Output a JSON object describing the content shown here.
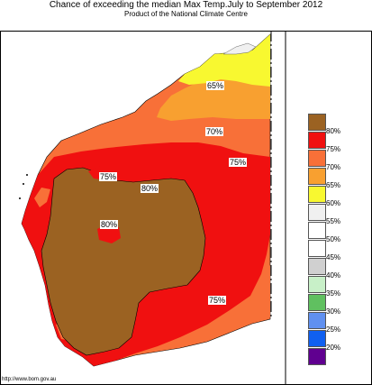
{
  "header": {
    "title": "Chance of exceeding the median Max Temp.July to September 2012",
    "subtitle": "Product of the National Climate Centre"
  },
  "map": {
    "region": "Western Australia",
    "contour_labels": [
      "65%",
      "70%",
      "75%",
      "75%",
      "80%",
      "80%",
      "75%"
    ]
  },
  "legend": {
    "entries": [
      {
        "label": "80%",
        "color": "#9b6222"
      },
      {
        "label": "75%",
        "color": "#f01010"
      },
      {
        "label": "70%",
        "color": "#f87038"
      },
      {
        "label": "65%",
        "color": "#f8a030"
      },
      {
        "label": "60%",
        "color": "#f8f830"
      },
      {
        "label": "55%",
        "color": "#f0f0f0"
      },
      {
        "label": "50%",
        "color": "#ffffff"
      },
      {
        "label": "45%",
        "color": "#ffffff"
      },
      {
        "label": "40%",
        "color": "#d0d0d0"
      },
      {
        "label": "35%",
        "color": "#c8f0c8"
      },
      {
        "label": "30%",
        "color": "#60c060"
      },
      {
        "label": "25%",
        "color": "#6090f0"
      },
      {
        "label": "20%",
        "color": "#1060f0"
      },
      {
        "label": "",
        "color": "#600090"
      }
    ]
  },
  "footer": {
    "url": "http://www.bom.gov.au"
  }
}
